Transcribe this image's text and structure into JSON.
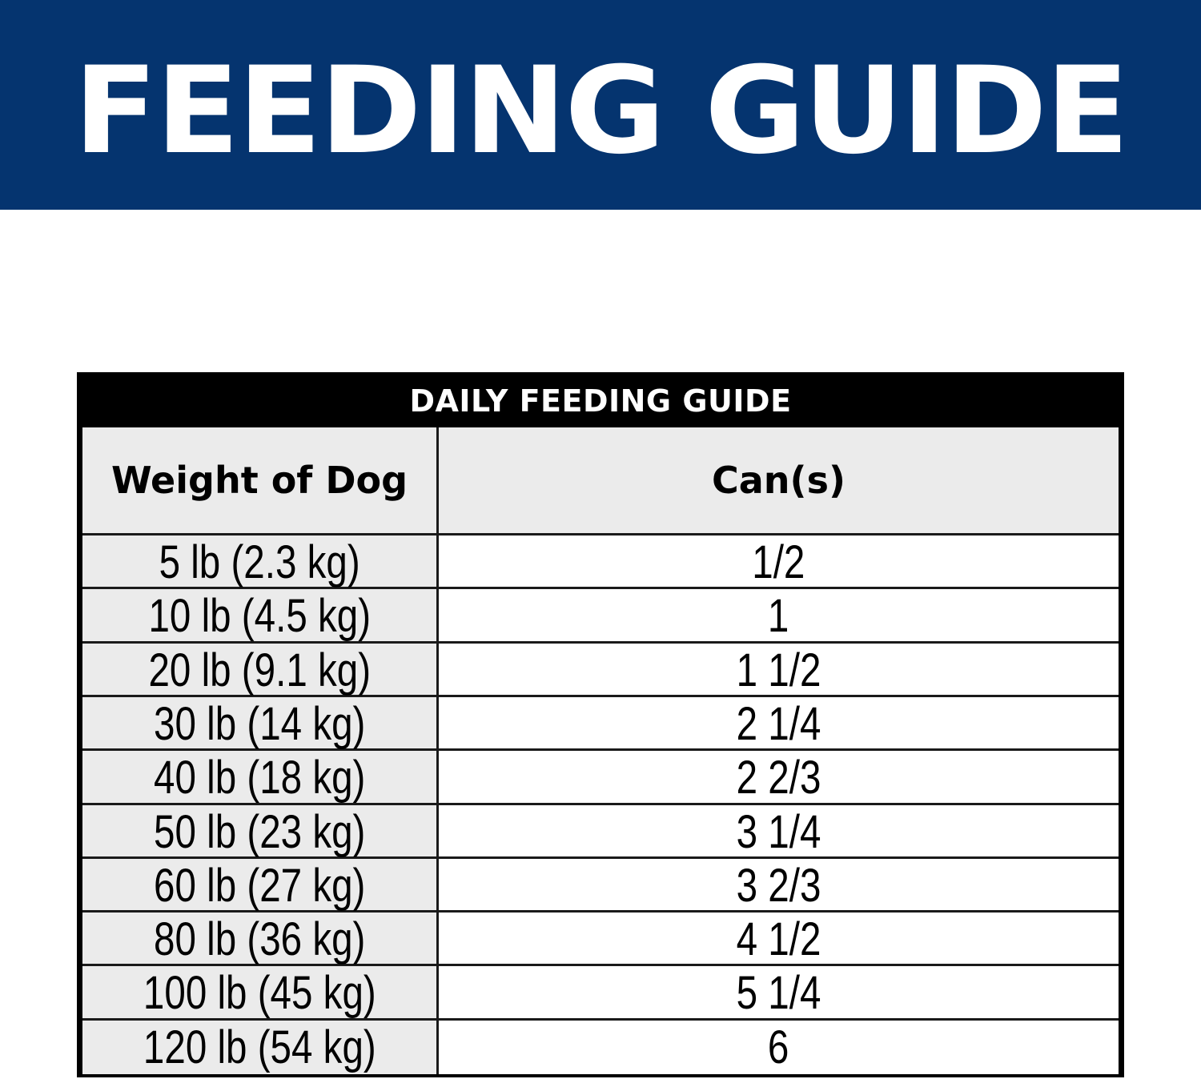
{
  "banner": {
    "title": "FEEDING GUIDE",
    "background_color": "#05346f",
    "text_color": "#ffffff"
  },
  "table": {
    "caption": "DAILY FEEDING GUIDE",
    "columns": [
      "Weight of Dog",
      "Can(s)"
    ],
    "rows": [
      {
        "weight": "5 lb (2.3 kg)",
        "cans": "1/2"
      },
      {
        "weight": "10 lb (4.5 kg)",
        "cans": "1"
      },
      {
        "weight": "20 lb (9.1 kg)",
        "cans": "1 1/2"
      },
      {
        "weight": "30 lb (14 kg)",
        "cans": "2 1/4"
      },
      {
        "weight": "40 lb (18 kg)",
        "cans": "2 2/3"
      },
      {
        "weight": "50 lb (23 kg)",
        "cans": "3 1/4"
      },
      {
        "weight": "60 lb (27 kg)",
        "cans": "3 2/3"
      },
      {
        "weight": "80 lb (36 kg)",
        "cans": "4 1/2"
      },
      {
        "weight": "100 lb (45 kg)",
        "cans": "5 1/4"
      },
      {
        "weight": "120 lb (54 kg)",
        "cans": "6"
      }
    ],
    "header_bg_color": "#000000",
    "label_cell_color": "#ebebeb",
    "value_cell_color": "#ffffff"
  }
}
